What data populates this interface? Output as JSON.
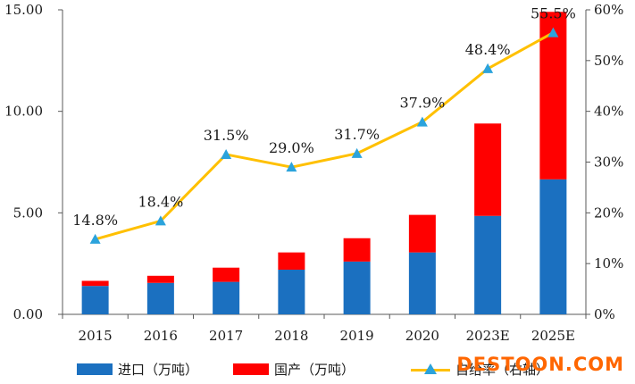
{
  "chart_data": {
    "type": "bar",
    "stacked": true,
    "categories": [
      "2015",
      "2016",
      "2017",
      "2018",
      "2019",
      "2020",
      "2023E",
      "2025E"
    ],
    "series": [
      {
        "name": "进口（万吨）",
        "values": [
          1.4,
          1.55,
          1.6,
          2.2,
          2.6,
          3.05,
          4.85,
          6.65
        ],
        "color": "#1b70c0"
      },
      {
        "name": "国产（万吨）",
        "values": [
          0.25,
          0.35,
          0.7,
          0.85,
          1.15,
          1.85,
          4.55,
          8.25
        ],
        "color": "#ff0000"
      }
    ],
    "line_series": {
      "name": "自给率（右轴）",
      "axis": "right",
      "values": [
        14.8,
        18.4,
        31.5,
        29.0,
        31.7,
        37.9,
        48.4,
        55.5
      ],
      "labels": [
        "14.8%",
        "18.4%",
        "31.5%",
        "29.0%",
        "31.7%",
        "37.9%",
        "48.4%",
        "55.5%"
      ],
      "color": "#ffc000",
      "marker_color": "#2ba3dc"
    },
    "y_left": {
      "lim": [
        0,
        15
      ],
      "ticks": [
        "0.00",
        "5.00",
        "10.00",
        "15.00"
      ]
    },
    "y_right": {
      "lim": [
        0,
        60
      ],
      "ticks": [
        "0%",
        "10%",
        "20%",
        "30%",
        "40%",
        "50%",
        "60%"
      ]
    },
    "grid": false,
    "legend_position": "bottom"
  },
  "watermark": {
    "text": "DESTOON.COM",
    "color": "#ff6600"
  }
}
